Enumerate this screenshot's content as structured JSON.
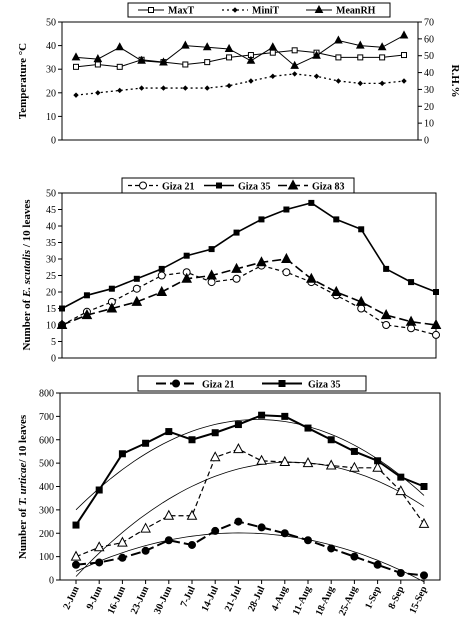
{
  "chart_data": [
    {
      "type": "line",
      "categories": [
        "2-Jun",
        "9-Jun",
        "16-Jun",
        "23-Jun",
        "30-Jun",
        "7-Jul",
        "14-Jul",
        "21-Jul",
        "28-Jul",
        "4-Aug",
        "11-Aug",
        "18-Aug",
        "25-Aug",
        "1-Sep",
        "8-Sep",
        "15-Sep"
      ],
      "ylabel": "Temperature °C",
      "y2label": "R.H.%",
      "ylim": [
        0,
        50
      ],
      "y2lim": [
        0,
        70
      ],
      "yticks": [
        0,
        10,
        20,
        30,
        40,
        50
      ],
      "y2ticks": [
        0,
        10,
        20,
        30,
        40,
        50,
        60,
        70
      ],
      "legend_position": "top",
      "series": [
        {
          "name": "MaxT",
          "axis": "left",
          "values": [
            31,
            32,
            31,
            34,
            33,
            32,
            33,
            35,
            36,
            37,
            38,
            37,
            35,
            35,
            35,
            36
          ]
        },
        {
          "name": "MiniT",
          "axis": "left",
          "values": [
            19,
            20,
            21,
            22,
            22,
            22,
            22,
            23,
            25,
            27,
            28,
            27,
            25,
            24,
            24,
            25
          ]
        },
        {
          "name": "MeanRH",
          "axis": "right",
          "values": [
            49,
            48,
            55,
            47,
            46,
            56,
            55,
            54,
            47,
            55,
            44,
            50,
            59,
            56,
            55,
            62
          ]
        }
      ]
    },
    {
      "type": "line",
      "categories": [
        "2-Jun",
        "9-Jun",
        "16-Jun",
        "23-Jun",
        "30-Jun",
        "7-Jul",
        "14-Jul",
        "21-Jul",
        "28-Jul",
        "4-Aug",
        "11-Aug",
        "18-Aug",
        "25-Aug",
        "1-Sep",
        "8-Sep",
        "15-Sep"
      ],
      "ylabel_pre": "Number of ",
      "ylabel_ital": "E. scutalis",
      "ylabel_post": " / 10 leaves",
      "ylim": [
        0,
        50
      ],
      "yticks": [
        0,
        5,
        10,
        15,
        20,
        25,
        30,
        35,
        40,
        45,
        50
      ],
      "legend_position": "top",
      "series": [
        {
          "name": "Giza 21",
          "values": [
            10,
            14,
            17,
            21,
            25,
            26,
            23,
            24,
            28,
            26,
            23,
            19,
            15,
            10,
            9,
            7
          ]
        },
        {
          "name": "Giza 35",
          "values": [
            15,
            19,
            21,
            24,
            27,
            31,
            33,
            38,
            42,
            45,
            47,
            42,
            39,
            27,
            23,
            20
          ]
        },
        {
          "name": "Giza 83",
          "values": [
            10,
            13,
            15,
            17,
            20,
            24,
            25,
            27,
            29,
            30,
            24,
            20,
            17,
            13,
            11,
            10
          ]
        }
      ]
    },
    {
      "type": "line",
      "categories": [
        "2-Jun",
        "9-Jun",
        "16-Jun",
        "23-Jun",
        "30-Jun",
        "7-Jul",
        "14-Jul",
        "21-Jul",
        "28-Jul",
        "4-Aug",
        "11-Aug",
        "18-Aug",
        "25-Aug",
        "1-Sep",
        "8-Sep",
        "15-Sep"
      ],
      "ylabel_pre": "Number of ",
      "ylabel_ital": "T. urticae",
      "ylabel_post": "/ 10 leaves",
      "ylim": [
        0,
        800
      ],
      "yticks": [
        0,
        100,
        200,
        300,
        400,
        500,
        600,
        700,
        800
      ],
      "legend_position": "top",
      "series": [
        {
          "name": "Giza 21",
          "values": [
            65,
            75,
            95,
            125,
            170,
            150,
            210,
            250,
            225,
            200,
            170,
            135,
            100,
            65,
            30,
            20
          ]
        },
        {
          "name": "Giza 35",
          "values": [
            235,
            385,
            540,
            585,
            635,
            600,
            630,
            665,
            705,
            700,
            650,
            600,
            550,
            510,
            440,
            400
          ]
        },
        {
          "name": "",
          "values": [
            100,
            140,
            160,
            220,
            275,
            275,
            525,
            560,
            510,
            505,
            500,
            490,
            480,
            480,
            380,
            240
          ]
        }
      ]
    }
  ]
}
